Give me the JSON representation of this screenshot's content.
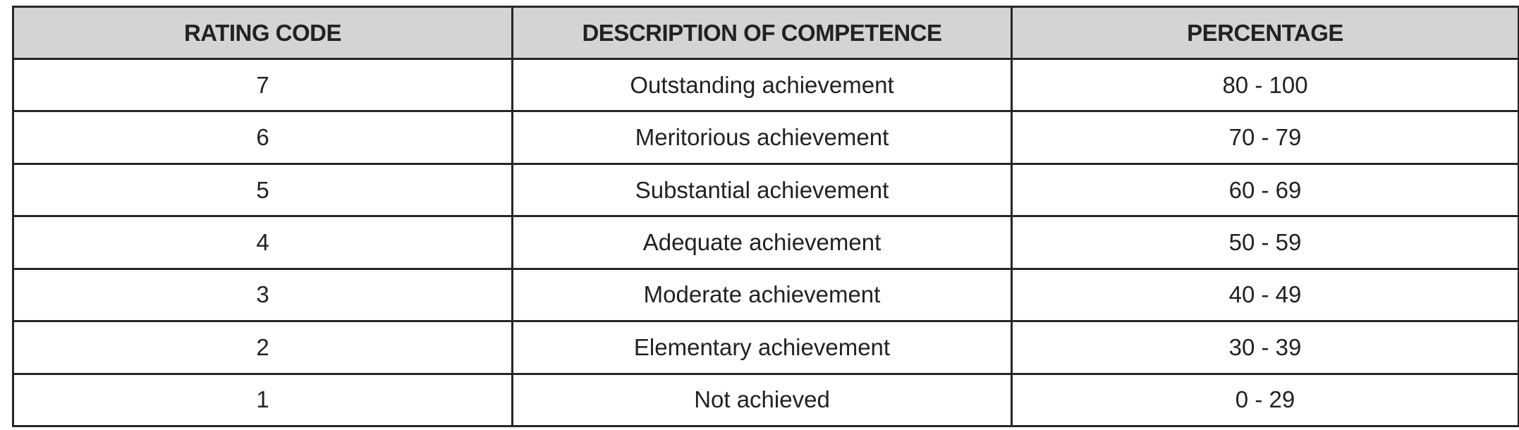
{
  "table": {
    "headers": [
      "RATING CODE",
      "DESCRIPTION OF COMPETENCE",
      "PERCENTAGE"
    ],
    "rows": [
      [
        "7",
        "Outstanding achievement",
        "80 - 100"
      ],
      [
        "6",
        "Meritorious achievement",
        "70 - 79"
      ],
      [
        "5",
        "Substantial achievement",
        "60 - 69"
      ],
      [
        "4",
        "Adequate achievement",
        "50 - 59"
      ],
      [
        "3",
        "Moderate achievement",
        "40 - 49"
      ],
      [
        "2",
        "Elementary achievement",
        "30 - 39"
      ],
      [
        "1",
        "Not achieved",
        "0 - 29"
      ]
    ]
  },
  "colors": {
    "header_bg": "#d4d4d4",
    "border": "#262626",
    "text": "#222222"
  }
}
